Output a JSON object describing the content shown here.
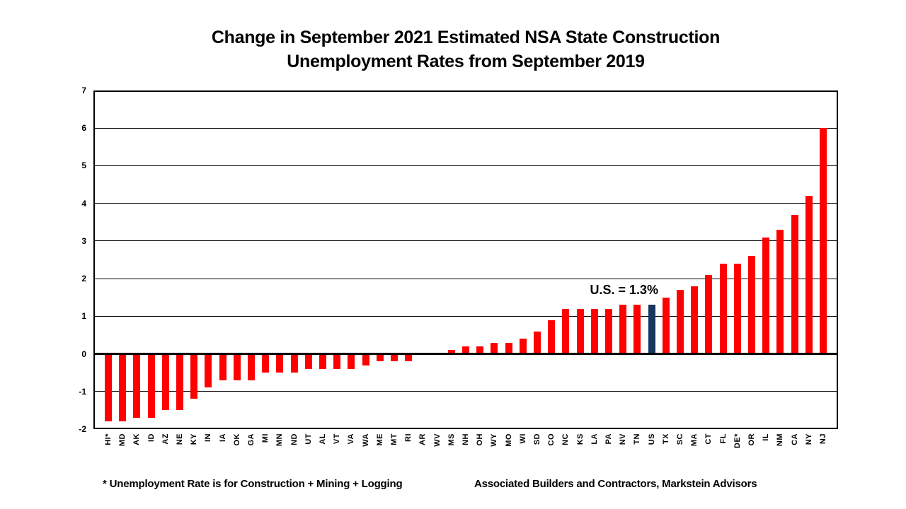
{
  "title": {
    "line1": "Change in September 2021 Estimated NSA State Construction",
    "line2": "Unemployment Rates from September 2019"
  },
  "annotation": "U.S. = 1.3%",
  "footnote": "* Unemployment Rate is for Construction + Mining + Logging",
  "source": "Associated Builders and Contractors, Markstein Advisors",
  "colors": {
    "bar": "#FF0000",
    "us_bar": "#17375E",
    "axis": "#000000",
    "background": "#FFFFFF"
  },
  "chart_data": {
    "type": "bar",
    "title": "Change in September 2021 Estimated NSA State Construction Unemployment Rates from September 2019",
    "xlabel": "",
    "ylabel": "",
    "ylim": [
      -2,
      7
    ],
    "yticks": [
      7,
      6,
      5,
      4,
      3,
      2,
      1,
      0,
      -1,
      -2
    ],
    "grid": true,
    "legend": false,
    "highlight_category": "US",
    "annotation": {
      "text": "U.S. = 1.3%",
      "attached_to": "US"
    },
    "categories": [
      "HI*",
      "MD",
      "AK",
      "ID",
      "AZ",
      "NE",
      "KY",
      "IN",
      "IA",
      "OK",
      "GA",
      "MI",
      "MN",
      "ND",
      "UT",
      "AL",
      "VT",
      "VA",
      "WA",
      "ME",
      "MT",
      "RI",
      "AR",
      "WV",
      "MS",
      "NH",
      "OH",
      "WY",
      "MO",
      "WI",
      "SD",
      "CO",
      "NC",
      "KS",
      "LA",
      "PA",
      "NV",
      "TN",
      "US",
      "TX",
      "SC",
      "MA",
      "CT",
      "FL",
      "DE*",
      "OR",
      "IL",
      "NM",
      "CA",
      "NY",
      "NJ"
    ],
    "values": [
      -1.8,
      -1.8,
      -1.7,
      -1.7,
      -1.5,
      -1.5,
      -1.2,
      -0.9,
      -0.7,
      -0.7,
      -0.7,
      -0.5,
      -0.5,
      -0.5,
      -0.4,
      -0.4,
      -0.4,
      -0.4,
      -0.3,
      -0.2,
      -0.2,
      -0.2,
      0,
      0,
      0.1,
      0.2,
      0.2,
      0.3,
      0.3,
      0.4,
      0.6,
      0.9,
      1.2,
      1.2,
      1.2,
      1.2,
      1.3,
      1.3,
      1.3,
      1.5,
      1.7,
      1.8,
      2.1,
      2.4,
      2.4,
      2.6,
      3.1,
      3.3,
      3.7,
      4.2,
      6.0
    ]
  }
}
